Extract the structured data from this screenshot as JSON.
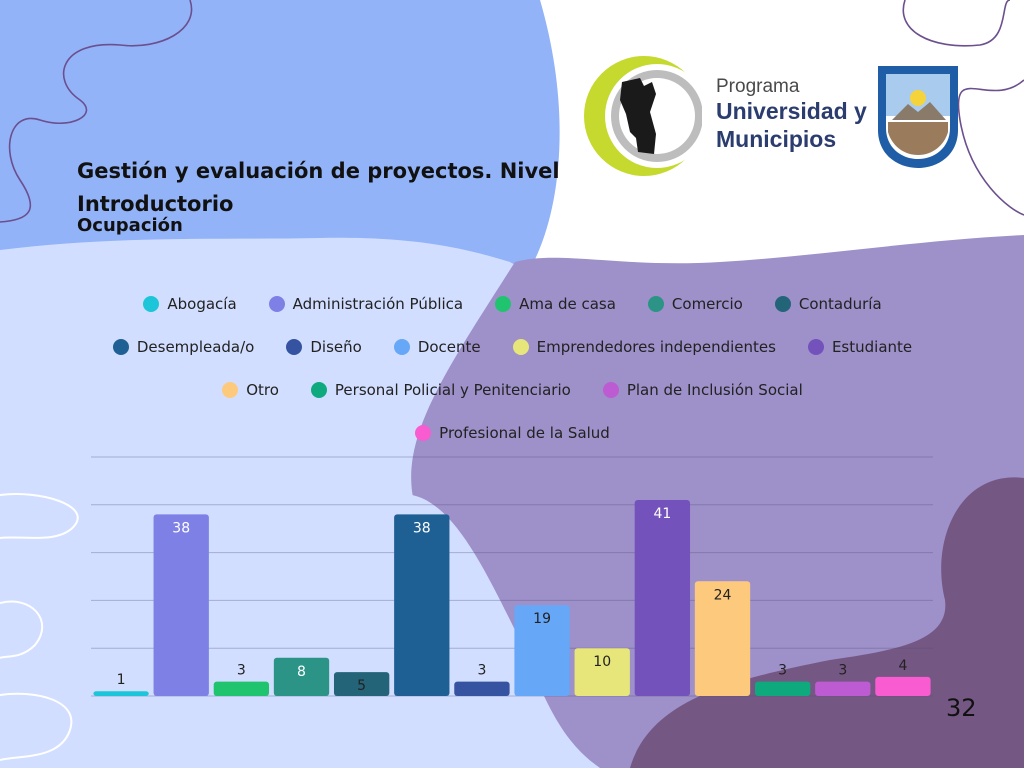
{
  "title": "Gestión y evaluación de proyectos. Nivel Introductorio",
  "subtitle": "Ocupación",
  "logo": {
    "line1": "Programa",
    "line2": "Universidad y",
    "line3": "Municipios"
  },
  "page_number": "32",
  "chart_data": {
    "type": "bar",
    "categories": [
      "Abogacía",
      "Administración Pública",
      "Ama de casa",
      "Comercio",
      "Contaduría",
      "Desempleada/o",
      "Diseño",
      "Docente",
      "Emprendedores independientes",
      "Estudiante",
      "Otro",
      "Personal Policial y Penitenciario",
      "Plan de Inclusión Social",
      "Profesional de la Salud"
    ],
    "values": [
      1,
      38,
      3,
      8,
      5,
      38,
      3,
      19,
      10,
      41,
      24,
      3,
      3,
      4
    ],
    "colors": [
      "#1cc6d8",
      "#7e80e6",
      "#20c46e",
      "#2b9486",
      "#236478",
      "#1f6094",
      "#3553a0",
      "#66a7f7",
      "#e7e67a",
      "#7452bc",
      "#fdca7d",
      "#0fa97e",
      "#bd5bd2",
      "#f95bd0"
    ],
    "label_colors": [
      "#222222",
      "#ffffff",
      "#222222",
      "#ffffff",
      "#222222",
      "#ffffff",
      "#222222",
      "#222222",
      "#222222",
      "#ffffff",
      "#222222",
      "#222222",
      "#222222",
      "#222222"
    ],
    "legend_rows": [
      [
        0,
        1,
        2,
        3,
        4
      ],
      [
        5,
        6,
        7,
        8,
        9
      ],
      [
        10,
        11,
        12
      ],
      [
        13
      ]
    ],
    "legend_position": "top",
    "ylim": [
      0,
      50
    ],
    "grid": true,
    "title": "Ocupación"
  }
}
